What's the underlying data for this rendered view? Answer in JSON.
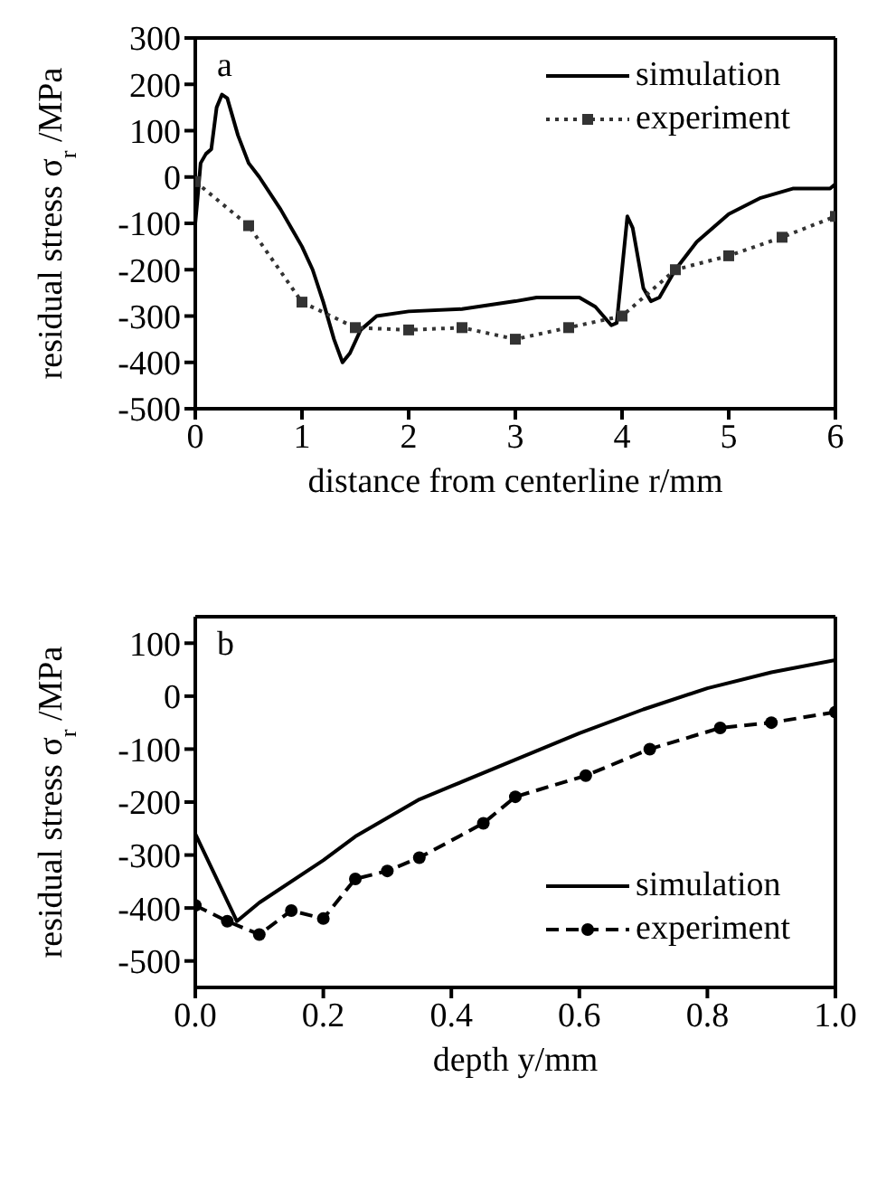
{
  "chart_data": [
    {
      "type": "line",
      "xlabel": "distance from centerline r/mm",
      "ylabel": "residual stress σ$_{r}$ /MPa",
      "annotations": [
        "a"
      ],
      "xlim": [
        0,
        6
      ],
      "xticks": [
        0,
        1,
        2,
        3,
        4,
        5,
        6
      ],
      "ylim": [
        -500,
        300
      ],
      "yticks": [
        -500,
        -400,
        -300,
        -200,
        -100,
        0,
        100,
        200,
        300
      ],
      "legend": "top right",
      "series": [
        {
          "name": "simulation",
          "color": "#000000",
          "marker": "none",
          "line_style": "solid",
          "x": [
            0,
            0.02,
            0.05,
            0.1,
            0.15,
            0.2,
            0.25,
            0.3,
            0.35,
            0.4,
            0.5,
            0.6,
            0.8,
            1.0,
            1.1,
            1.2,
            1.3,
            1.38,
            1.45,
            1.55,
            1.7,
            2.0,
            2.5,
            3.0,
            3.2,
            3.6,
            3.75,
            3.9,
            3.95,
            4.0,
            4.05,
            4.1,
            4.2,
            4.27,
            4.35,
            4.5,
            4.7,
            5.0,
            5.3,
            5.6,
            5.8,
            5.95,
            6.0
          ],
          "values": [
            -100,
            -50,
            30,
            50,
            60,
            150,
            178,
            170,
            130,
            90,
            30,
            0,
            -70,
            -150,
            -200,
            -270,
            -350,
            -400,
            -380,
            -330,
            -300,
            -290,
            -285,
            -268,
            -260,
            -260,
            -280,
            -320,
            -315,
            -200,
            -85,
            -110,
            -240,
            -268,
            -260,
            -200,
            -140,
            -80,
            -45,
            -25,
            -25,
            -25,
            -15
          ]
        },
        {
          "name": "experiment",
          "color": "#333333",
          "marker": "square",
          "line_style": "dotted",
          "x": [
            0,
            0.5,
            1.0,
            1.5,
            2.0,
            2.5,
            3.0,
            3.5,
            4.0,
            4.5,
            5.0,
            5.5,
            6.0
          ],
          "values": [
            -10,
            -105,
            -270,
            -325,
            -330,
            -325,
            -350,
            -325,
            -300,
            -200,
            -170,
            -130,
            -85
          ]
        }
      ]
    },
    {
      "type": "line",
      "xlabel": "depth y/mm",
      "ylabel": "residual stress σ$_{r}$ /MPa",
      "annotations": [
        "b"
      ],
      "xlim": [
        0,
        1
      ],
      "xticks": [
        {
          "value": 0,
          "label": "0.0"
        },
        0.2,
        0.4,
        0.6,
        0.8,
        {
          "value": 1,
          "label": "1.0"
        }
      ],
      "ylim": [
        -550,
        150
      ],
      "yticks": [
        -500,
        -400,
        -300,
        -200,
        -100,
        0,
        100
      ],
      "legend": "right",
      "series": [
        {
          "name": "simulation",
          "color": "#000000",
          "marker": "none",
          "line_style": "solid",
          "x": [
            0,
            0.065,
            0.1,
            0.2,
            0.25,
            0.3,
            0.35,
            0.4,
            0.5,
            0.6,
            0.7,
            0.8,
            0.9,
            1.0
          ],
          "values": [
            -260,
            -425,
            -390,
            -310,
            -265,
            -230,
            -195,
            -170,
            -120,
            -70,
            -25,
            15,
            45,
            68
          ]
        },
        {
          "name": "experiment",
          "color": "#000000",
          "marker": "circle",
          "line_style": "dashed",
          "x": [
            0,
            0.05,
            0.1,
            0.15,
            0.2,
            0.25,
            0.3,
            0.35,
            0.45,
            0.5,
            0.61,
            0.71,
            0.82,
            0.9,
            1.0
          ],
          "values": [
            -395,
            -425,
            -450,
            -405,
            -420,
            -345,
            -330,
            -305,
            -240,
            -190,
            -150,
            -100,
            -60,
            -50,
            -30
          ]
        }
      ]
    }
  ]
}
